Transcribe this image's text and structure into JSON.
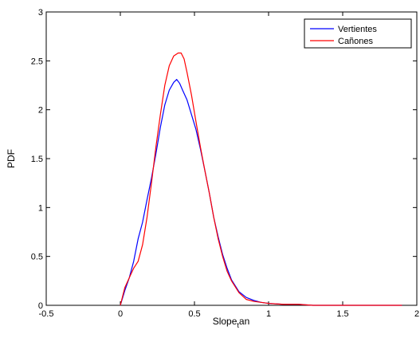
{
  "chart_data": {
    "type": "line",
    "title": "",
    "xlabel": "Slope",
    "xlabel_subscript": "t",
    "xlabel_suffix": "an",
    "ylabel": "PDF",
    "xlim": [
      -0.5,
      2
    ],
    "ylim": [
      0,
      3
    ],
    "xticks": [
      "-0.5",
      "0",
      "0.5",
      "1",
      "1.5",
      "2"
    ],
    "yticks": [
      "0",
      "0.5",
      "1",
      "1.5",
      "2",
      "2.5",
      "3"
    ],
    "grid": false,
    "legend_position": "top-right",
    "series": [
      {
        "name": "Vertientes",
        "color": "#0000ff",
        "x": [
          0.0,
          0.03,
          0.06,
          0.09,
          0.12,
          0.15,
          0.18,
          0.21,
          0.24,
          0.27,
          0.3,
          0.33,
          0.36,
          0.38,
          0.4,
          0.42,
          0.45,
          0.48,
          0.51,
          0.54,
          0.57,
          0.6,
          0.63,
          0.66,
          0.69,
          0.72,
          0.75,
          0.8,
          0.85,
          0.9,
          0.95,
          1.0,
          1.1,
          1.2,
          1.3,
          1.5,
          1.7,
          1.9
        ],
        "y": [
          0.0,
          0.15,
          0.28,
          0.45,
          0.68,
          0.85,
          1.08,
          1.3,
          1.55,
          1.82,
          2.05,
          2.2,
          2.28,
          2.31,
          2.27,
          2.2,
          2.1,
          1.95,
          1.8,
          1.6,
          1.38,
          1.15,
          0.9,
          0.7,
          0.52,
          0.38,
          0.26,
          0.14,
          0.08,
          0.05,
          0.03,
          0.02,
          0.01,
          0.01,
          0.0,
          0.0,
          0.0,
          0.0
        ]
      },
      {
        "name": "Cañones",
        "color": "#ff0000",
        "x": [
          0.0,
          0.03,
          0.06,
          0.09,
          0.12,
          0.15,
          0.18,
          0.21,
          0.24,
          0.27,
          0.3,
          0.33,
          0.36,
          0.39,
          0.41,
          0.43,
          0.45,
          0.48,
          0.51,
          0.54,
          0.57,
          0.6,
          0.63,
          0.66,
          0.69,
          0.72,
          0.75,
          0.8,
          0.85,
          0.9,
          0.95,
          1.0,
          1.1,
          1.2,
          1.3,
          1.5,
          1.7,
          1.9
        ],
        "y": [
          0.0,
          0.18,
          0.28,
          0.38,
          0.45,
          0.62,
          0.9,
          1.25,
          1.62,
          1.95,
          2.25,
          2.45,
          2.55,
          2.58,
          2.58,
          2.52,
          2.38,
          2.15,
          1.88,
          1.62,
          1.38,
          1.15,
          0.9,
          0.68,
          0.5,
          0.35,
          0.25,
          0.13,
          0.06,
          0.04,
          0.03,
          0.02,
          0.01,
          0.01,
          0.0,
          0.0,
          0.0,
          0.0
        ]
      }
    ]
  }
}
